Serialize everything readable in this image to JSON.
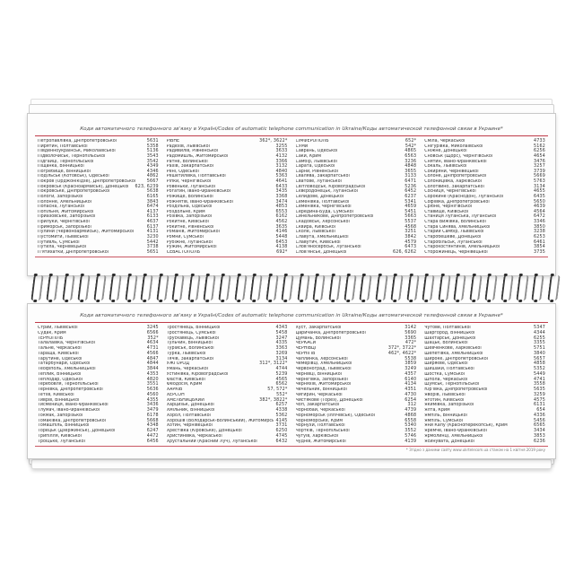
{
  "header_title": "Коди автоматичного телефонного зв'язку в Україні/Codes of automatic telephone communication in Ukraine/Коды автоматической телефонной связи в Украине*",
  "footnote": "* Згідно з даними сайту www.ukrtelecom.ua станом на 1 квітня 2019 року",
  "accent_color": "#bf3a48",
  "pages": [
    {
      "columns": [
        [
          {
            "name": "Петропавлівка, Дніпропетровської",
            "code": "5631"
          },
          {
            "name": "Пирятин, Полтавської",
            "code": "5358"
          },
          {
            "name": "Південноукраїнськ, Миколаївської",
            "code": "5136"
          },
          {
            "name": "Підволочиськ, Тернопільської",
            "code": "3543"
          },
          {
            "name": "Підгайці, Тернопільської",
            "code": "3542"
          },
          {
            "name": "Піщанка, Вінницької",
            "code": "4349"
          },
          {
            "name": "Погребище, Вінницької",
            "code": "4346"
          },
          {
            "name": "Подільськ (Котовськ), Одеської",
            "code": "4862"
          },
          {
            "name": "Покров (Орджонікідзе), Дніпропетровської",
            "code": "5667"
          },
          {
            "name": "Покровськ (Красноармійськ), Донецької",
            "code": "623, 6239"
          },
          {
            "name": "Покровське, Дніпропетровської",
            "code": "5638"
          },
          {
            "name": "Пологи, Запорізької",
            "code": "6165"
          },
          {
            "name": "Полонне, Хмельницької",
            "code": "3843"
          },
          {
            "name": "Попасна, Луганської",
            "code": "6474"
          },
          {
            "name": "Попільня, Житомирської",
            "code": "4137"
          },
          {
            "name": "Приазовське, Запорізької",
            "code": "6133"
          },
          {
            "name": "Прилуки, Чернігівської",
            "code": "4637"
          },
          {
            "name": "Приморськ, Запорізької",
            "code": "6137"
          },
          {
            "name": "Пулини (Червоноармійськ), Житомирської",
            "code": "4131"
          },
          {
            "name": "Пустомити, Львівської",
            "code": "3230"
          },
          {
            "name": "Путивль, Сумської",
            "code": "5442"
          },
          {
            "name": "Путила, Чернівецької",
            "code": "3738"
          },
          {
            "name": "П'ятихатки, Дніпропетровської",
            "code": "5651"
          }
        ],
        [
          {
            "name": "РІВНЕ",
            "code": "362*, 3622*"
          },
          {
            "name": "Радехів, Львівської",
            "code": "3255"
          },
          {
            "name": "Радивилів, Рівненської",
            "code": "3633"
          },
          {
            "name": "Радомишль, Житомирської",
            "code": "4132"
          },
          {
            "name": "Ратне, Волинської",
            "code": "3366"
          },
          {
            "name": "Рахів, Закарпатської",
            "code": "3132"
          },
          {
            "name": "Рені, Одеської",
            "code": "4840"
          },
          {
            "name": "Решетилівка, Полтавської",
            "code": "5363"
          },
          {
            "name": "Ріпки, Чернігівської",
            "code": "4641"
          },
          {
            "name": "Ровеньки, Луганської",
            "code": "6433"
          },
          {
            "name": "Рогатин, Івано-Франківської",
            "code": "3435"
          },
          {
            "name": "Рожище, Волинської",
            "code": "3368"
          },
          {
            "name": "Рожнятів, Івано-Франківської",
            "code": "3474"
          },
          {
            "name": "Роздільна, Одеської",
            "code": "4853"
          },
          {
            "name": "Роздольне, Крим",
            "code": "6553"
          },
          {
            "name": "Розівка, Запорізької",
            "code": "6162"
          },
          {
            "name": "Рокитне, Київської",
            "code": "4562"
          },
          {
            "name": "Рокитне, Рівненської",
            "code": "3635"
          },
          {
            "name": "Романів, Житомирської",
            "code": "4146"
          },
          {
            "name": "Ромни, Сумської",
            "code": "5448"
          },
          {
            "name": "Рубіжне, Луганської",
            "code": "6453"
          },
          {
            "name": "Ружин, Житомирської",
            "code": "4138"
          },
          {
            "name": "СЕВАСТОПОЛЬ",
            "code": "692*"
          }
        ],
        [
          {
            "name": "СІМФЕРОПОЛЬ",
            "code": "652*"
          },
          {
            "name": "СУМИ",
            "code": "542*"
          },
          {
            "name": "Саврань, Одеської",
            "code": "4865"
          },
          {
            "name": "Саки, Крим",
            "code": "6563"
          },
          {
            "name": "Самбір, Львівської",
            "code": "3236"
          },
          {
            "name": "Сарата, Одеської",
            "code": "4848"
          },
          {
            "name": "Сарни, Рівненської",
            "code": "3655"
          },
          {
            "name": "Свалява, Закарпатської",
            "code": "3133"
          },
          {
            "name": "Сватове, Луганської",
            "code": "6471"
          },
          {
            "name": "Світловодськ, Кіровоградської",
            "code": "5236"
          },
          {
            "name": "Сєвєродонецьк, Луганської",
            "code": "6452"
          },
          {
            "name": "Селидове, Донецької",
            "code": "6237"
          },
          {
            "name": "Семенівка, Полтавської",
            "code": "5341"
          },
          {
            "name": "Семенівка, Чернігівської",
            "code": "4659"
          },
          {
            "name": "Середина-Буда, Сумської",
            "code": "5451"
          },
          {
            "name": "Синельникове, Дніпропетровської",
            "code": "5663"
          },
          {
            "name": "Скадовськ, Херсонської",
            "code": "5537"
          },
          {
            "name": "Сквира, Київської",
            "code": "4568"
          },
          {
            "name": "Сколе, Львівської",
            "code": "3251"
          },
          {
            "name": "Славута, Хмельницької",
            "code": "3842"
          },
          {
            "name": "Славутич, Київської",
            "code": "4579"
          },
          {
            "name": "Слов'яносербськ, Луганської",
            "code": "6473"
          },
          {
            "name": "Слов'янськ, Донецької",
            "code": "626, 6262"
          }
        ],
        [
          {
            "name": "Сміла, Черкаської",
            "code": "4733"
          },
          {
            "name": "Снігурівка, Миколаївської",
            "code": "5162"
          },
          {
            "name": "Сніжне, Донецької",
            "code": "6256"
          },
          {
            "name": "Сновськ (Щорс), Чернігівської",
            "code": "4654"
          },
          {
            "name": "Снятин, Івано-Франківської",
            "code": "3476"
          },
          {
            "name": "Сокаль, Львівської",
            "code": "3257"
          },
          {
            "name": "Сокиряни, Чернівецької",
            "code": "3739"
          },
          {
            "name": "Солоне, Дніпропетровської",
            "code": "5669"
          },
          {
            "name": "Солоницівка, Харківської",
            "code": "5763"
          },
          {
            "name": "Солотвино, Закарпатської",
            "code": "3134"
          },
          {
            "name": "Сосниця, Чернігівської",
            "code": "4655"
          },
          {
            "name": "Сорокине (Краснодон), Луганської",
            "code": "6435"
          },
          {
            "name": "Софіївка, Дніпропетровської",
            "code": "5650"
          },
          {
            "name": "Срібне, Чернігівської",
            "code": "4639"
          },
          {
            "name": "Ставище, Київської",
            "code": "4564"
          },
          {
            "name": "Станиця Луганська, Луганської",
            "code": "6472"
          },
          {
            "name": "Стара Вижівка, Волинської",
            "code": "3346"
          },
          {
            "name": "Стара Синява, Хмельницької",
            "code": "3850"
          },
          {
            "name": "Старий Самбір, Львівської",
            "code": "3238"
          },
          {
            "name": "Старобешеве, Донецької",
            "code": "6253"
          },
          {
            "name": "Старобільськ, Луганської",
            "code": "6461"
          },
          {
            "name": "Старокостянтинів, Хмельницької",
            "code": "3854"
          },
          {
            "name": "Сторожинець, Чернівецької",
            "code": "3735"
          }
        ]
      ]
    },
    {
      "columns": [
        [
          {
            "name": "Стрий, Львівської",
            "code": "3245"
          },
          {
            "name": "Судак, Крим",
            "code": "6566"
          },
          {
            "name": "ТЕРНОПІЛЬ",
            "code": "352*"
          },
          {
            "name": "Талалаївка, Чернігівської",
            "code": "4634"
          },
          {
            "name": "Тальне, Черкаської",
            "code": "4731"
          },
          {
            "name": "Тараща, Київської",
            "code": "4566"
          },
          {
            "name": "Тарутине, Одеської",
            "code": "4847"
          },
          {
            "name": "Татарбунари, Одеської",
            "code": "4844"
          },
          {
            "name": "Теофіполь, Хмельницької",
            "code": "3844"
          },
          {
            "name": "Теплик, Вінницької",
            "code": "4353"
          },
          {
            "name": "Теплодар, Одеської",
            "code": "4820"
          },
          {
            "name": "Теребовля, Тернопільської",
            "code": "3551"
          },
          {
            "name": "Тернівка, Дніпропетровської",
            "code": "5636"
          },
          {
            "name": "Тетіїв, Київської",
            "code": "4560"
          },
          {
            "name": "Тиврів, Вінницької",
            "code": "4355"
          },
          {
            "name": "Тисмениця, Івано-Франківської",
            "code": "3436"
          },
          {
            "name": "Тлумач, Івано-Франківської",
            "code": "3479"
          },
          {
            "name": "Токмак, Запорізької",
            "code": "6178"
          },
          {
            "name": "Томаківка, Дніпропетровської",
            "code": "5668"
          },
          {
            "name": "Томашпіль, Вінницької",
            "code": "4348"
          },
          {
            "name": "Торецьк (Дзержинськ), Донецької",
            "code": "6247"
          },
          {
            "name": "Трипілля, Київської",
            "code": "4472"
          },
          {
            "name": "Троїцьке, Луганської",
            "code": "6456"
          }
        ],
        [
          {
            "name": "Тростянець, Вінницької",
            "code": "4343"
          },
          {
            "name": "Тростянець, Сумської",
            "code": "5458"
          },
          {
            "name": "Трускавець, Львівської",
            "code": "3247"
          },
          {
            "name": "Тульчин, Вінницької",
            "code": "4335"
          },
          {
            "name": "Турійськ, Волинської",
            "code": "3363"
          },
          {
            "name": "Турка, Львівської",
            "code": "3269"
          },
          {
            "name": "Тячів, Закарпатської",
            "code": "3134"
          },
          {
            "name": "УЖГОРОД",
            "code": "312*, 3122*"
          },
          {
            "name": "Умань, Черкаської",
            "code": "4744"
          },
          {
            "name": "Устинівка, Кіровоградської",
            "code": "5239"
          },
          {
            "name": "Фастів, Київської",
            "code": "4565"
          },
          {
            "name": "Феодосія, Крим",
            "code": "6562"
          },
          {
            "name": "ХАРКІВ",
            "code": "57, 572*"
          },
          {
            "name": "ХЕРСОН",
            "code": "552*"
          },
          {
            "name": "ХМЕЛЬНИЦЬКИЙ",
            "code": "382*, 3822*"
          },
          {
            "name": "Харцизьк, Донецької",
            "code": "6257"
          },
          {
            "name": "Хмільник, Вінницької",
            "code": "4338"
          },
          {
            "name": "Хорол, Полтавської",
            "code": "5362"
          },
          {
            "name": "Хорошів (Володарськ-Волинський), Житомирської",
            "code": "4145"
          },
          {
            "name": "Хотин, Чернівецької",
            "code": "3731"
          },
          {
            "name": "Хрестівка (Кіровське), Донецької",
            "code": "6250"
          },
          {
            "name": "Христинівка, Черкаської",
            "code": "4745"
          },
          {
            "name": "Хрустальний (Красний Луч), Луганської",
            "code": "6432"
          }
        ],
        [
          {
            "name": "Хуст, Закарпатської",
            "code": "3142"
          },
          {
            "name": "Царичанка, Дніпропетровської",
            "code": "5690"
          },
          {
            "name": "Цумань, Волинської",
            "code": "3365"
          },
          {
            "name": "ЧЕРКАСИ",
            "code": "472*"
          },
          {
            "name": "ЧЕРНІВЦІ",
            "code": "372*, 3722*"
          },
          {
            "name": "ЧЕРНІГІВ",
            "code": "462*, 4622*"
          },
          {
            "name": "Чаплинка, Херсонської",
            "code": "5538"
          },
          {
            "name": "Чемерівці, Хмельницької",
            "code": "3859"
          },
          {
            "name": "Червоноград, Львівської",
            "code": "3249"
          },
          {
            "name": "Чернівці, Вінницької",
            "code": "4357"
          },
          {
            "name": "Чернігівка, Запорізької",
            "code": "6140"
          },
          {
            "name": "Черняхів, Житомирської",
            "code": "4134"
          },
          {
            "name": "Чечельник, Вінницької",
            "code": "4351"
          },
          {
            "name": "Чигирин, Черкаської",
            "code": "4730"
          },
          {
            "name": "Чистякове (Торез), Донецької",
            "code": "6254"
          },
          {
            "name": "Чоп, Закарпатської",
            "code": "312"
          },
          {
            "name": "Чорнобай, Черкаської",
            "code": "4739"
          },
          {
            "name": "Чорноморськ (Іллічівськ), Одеської",
            "code": "4868"
          },
          {
            "name": "Чорноморське, Крим",
            "code": "6558"
          },
          {
            "name": "Чорнухи, Полтавської",
            "code": "5340"
          },
          {
            "name": "Чортків, Тернопільської",
            "code": "3552"
          },
          {
            "name": "Чугуїв, Харківської",
            "code": "5746"
          },
          {
            "name": "Чуднів, Житомирської",
            "code": "4139"
          }
        ],
        [
          {
            "name": "Чутове, Полтавської",
            "code": "5347"
          },
          {
            "name": "Шаргород, Вінницької",
            "code": "4344"
          },
          {
            "name": "Шахтарськ, Донецької",
            "code": "6255"
          },
          {
            "name": "Шацьк, Волинської",
            "code": "3355"
          },
          {
            "name": "Шевченкове, Харківської",
            "code": "5751"
          },
          {
            "name": "Шепетівка, Хмельницької",
            "code": "3840"
          },
          {
            "name": "Широке, Дніпропетровської",
            "code": "5657"
          },
          {
            "name": "Ширяєве, Одеської",
            "code": "4858"
          },
          {
            "name": "Шишаки, Полтавської",
            "code": "5352"
          },
          {
            "name": "Шостка, Сумської",
            "code": "5449"
          },
          {
            "name": "Шпола, Черкаської",
            "code": "4741"
          },
          {
            "name": "Шумськ, Тернопільської",
            "code": "3558"
          },
          {
            "name": "Юр'ївка, Дніпропетровської",
            "code": "5635"
          },
          {
            "name": "Яворів, Львівської",
            "code": "3259"
          },
          {
            "name": "Яготин, Київської",
            "code": "4575"
          },
          {
            "name": "Якимівка, Запорізької",
            "code": "6131"
          },
          {
            "name": "Ялта, Крим",
            "code": "654"
          },
          {
            "name": "Ямпіль, Вінницької",
            "code": "4336"
          },
          {
            "name": "Ямпіль, Сумської",
            "code": "5456"
          },
          {
            "name": "Яни Капу (Красноперекопськ), Крим",
            "code": "6565"
          },
          {
            "name": "Яремче, Івано-Франківської",
            "code": "3434"
          },
          {
            "name": "Ярмолинці, Хмельницької",
            "code": "3853"
          },
          {
            "name": "Ясинувата, Донецької",
            "code": "6236"
          }
        ]
      ]
    }
  ]
}
